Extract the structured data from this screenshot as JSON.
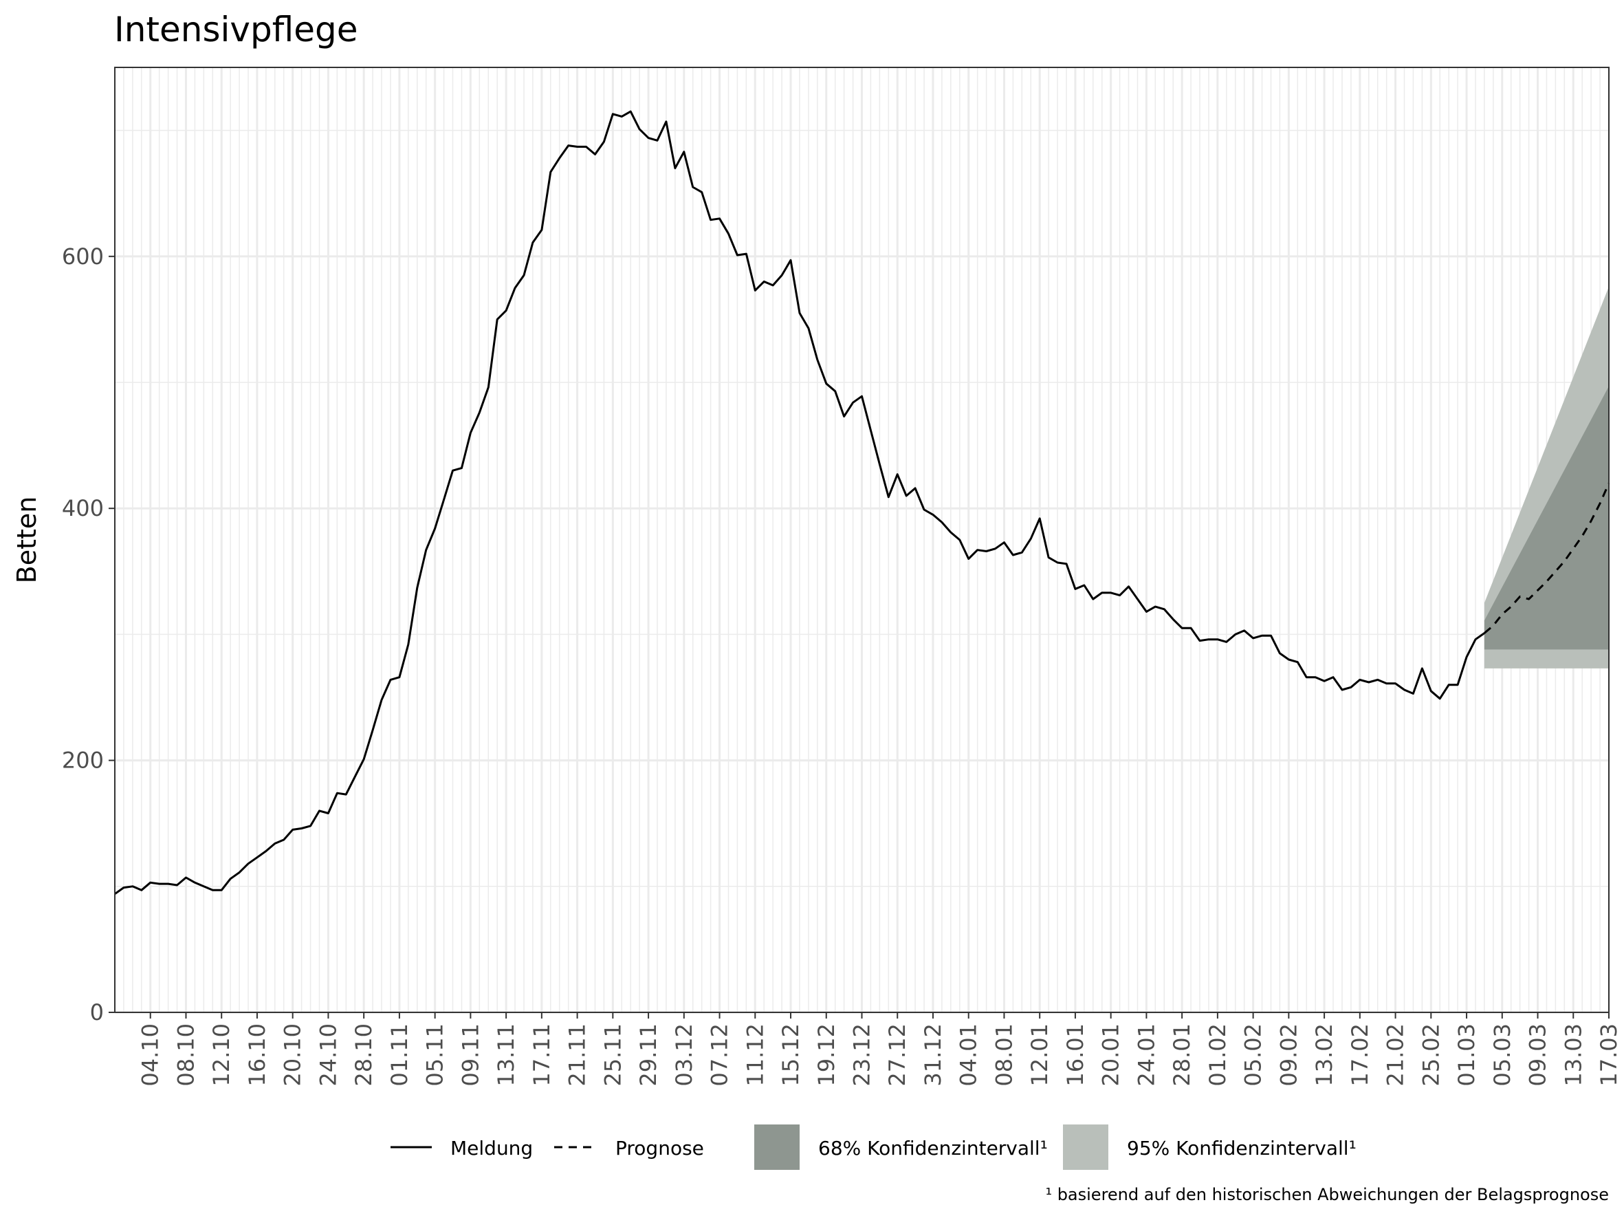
{
  "chart_data": {
    "type": "line",
    "title": "Intensivpflege",
    "ylabel": "Betten",
    "xlabel": "",
    "ylim": [
      0,
      750
    ],
    "yticks": [
      0,
      200,
      400,
      600
    ],
    "xlim": [
      "2020-09-30",
      "2021-03-17"
    ],
    "xtick_labels": [
      "04.10",
      "08.10",
      "12.10",
      "16.10",
      "20.10",
      "24.10",
      "28.10",
      "01.11",
      "05.11",
      "09.11",
      "13.11",
      "17.11",
      "21.11",
      "25.11",
      "29.11",
      "03.12",
      "07.12",
      "11.12",
      "15.12",
      "19.12",
      "23.12",
      "27.12",
      "31.12",
      "04.01",
      "08.01",
      "12.01",
      "16.01",
      "20.01",
      "24.01",
      "28.01",
      "01.02",
      "05.02",
      "09.02",
      "13.02",
      "17.02",
      "21.02",
      "25.02",
      "01.03",
      "05.03",
      "09.03",
      "13.03",
      "17.03"
    ],
    "xtick_dates": [
      "2020-10-04",
      "2020-10-08",
      "2020-10-12",
      "2020-10-16",
      "2020-10-20",
      "2020-10-24",
      "2020-10-28",
      "2020-11-01",
      "2020-11-05",
      "2020-11-09",
      "2020-11-13",
      "2020-11-17",
      "2020-11-21",
      "2020-11-25",
      "2020-11-29",
      "2020-12-03",
      "2020-12-07",
      "2020-12-11",
      "2020-12-15",
      "2020-12-19",
      "2020-12-23",
      "2020-12-27",
      "2020-12-31",
      "2021-01-04",
      "2021-01-08",
      "2021-01-12",
      "2021-01-16",
      "2021-01-20",
      "2021-01-24",
      "2021-01-28",
      "2021-02-01",
      "2021-02-05",
      "2021-02-09",
      "2021-02-13",
      "2021-02-17",
      "2021-02-21",
      "2021-02-25",
      "2021-03-01",
      "2021-03-05",
      "2021-03-09",
      "2021-03-13",
      "2021-03-17"
    ],
    "grid": true,
    "legend_position": "bottom",
    "series": [
      {
        "name": "Meldung",
        "style": "solid",
        "start_date": "2020-09-30",
        "values": [
          94,
          99,
          100,
          97,
          103,
          102,
          102,
          101,
          107,
          103,
          100,
          97,
          97,
          106,
          111,
          118,
          123,
          128,
          134,
          137,
          145,
          146,
          148,
          160,
          158,
          174,
          173,
          187,
          201,
          224,
          248,
          264,
          266,
          292,
          337,
          367,
          384,
          407,
          430,
          432,
          460,
          476,
          496,
          550,
          557,
          575,
          585,
          611,
          621,
          667,
          678,
          688,
          687,
          687,
          681,
          691,
          713,
          711,
          715,
          701,
          694,
          692,
          707,
          670,
          683,
          655,
          651,
          629,
          630,
          618,
          601,
          602,
          573,
          580,
          577,
          585,
          597,
          555,
          543,
          518,
          499,
          493,
          473,
          484,
          489,
          462,
          435,
          409,
          427,
          410,
          416,
          399,
          395,
          389,
          381,
          375,
          360,
          367,
          366,
          368,
          373,
          363,
          365,
          376,
          392,
          361,
          357,
          356,
          336,
          339,
          328,
          333,
          333,
          331,
          338,
          328,
          318,
          322,
          320,
          312,
          305,
          305,
          295,
          296,
          296,
          294,
          300,
          303,
          297,
          299,
          299,
          285,
          280,
          278,
          266,
          266,
          263,
          266,
          256,
          258,
          264,
          262,
          264,
          261,
          261,
          256,
          253,
          273,
          255,
          249,
          260,
          260,
          282,
          296,
          301
        ]
      },
      {
        "name": "Prognose",
        "style": "dashed",
        "start_date": "2021-03-03",
        "values": [
          301,
          307,
          316,
          322,
          330,
          328,
          335,
          342,
          350,
          358,
          368,
          378,
          390,
          404,
          420
        ]
      }
    ],
    "bands": [
      {
        "name": "95% Konfidenzintervall¹",
        "color": "#b9bfba",
        "dates": [
          "2021-03-03",
          "2021-03-17"
        ],
        "lower": [
          273,
          273
        ],
        "upper": [
          325,
          576
        ]
      },
      {
        "name": "68% Konfidenzintervall¹",
        "color": "#8e9690",
        "dates": [
          "2021-03-03",
          "2021-03-17"
        ],
        "lower": [
          288,
          288
        ],
        "upper": [
          311,
          497
        ]
      }
    ],
    "footnote": "¹ basierend auf den historischen Abweichungen der Belagsprognose"
  },
  "legend": {
    "meldung": "Meldung",
    "prognose": "Prognose",
    "ci68": "68% Konfidenzintervall¹",
    "ci95": "95% Konfidenzintervall¹"
  }
}
